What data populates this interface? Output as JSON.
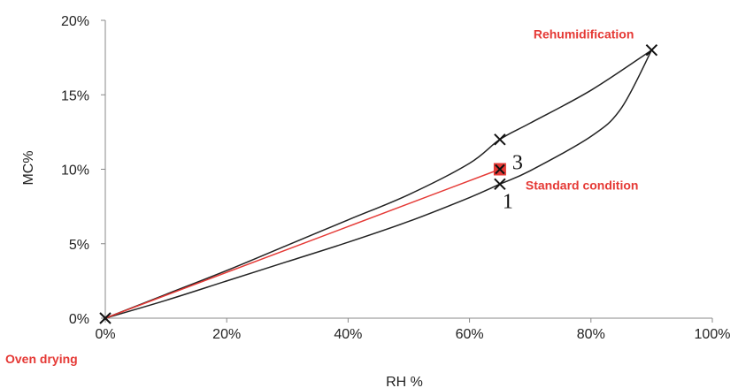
{
  "chart_data": {
    "type": "line",
    "title": "",
    "xlabel": "RH %",
    "ylabel": "MC%",
    "xlim": [
      0,
      100
    ],
    "ylim": [
      0,
      20
    ],
    "x_ticks": [
      "0%",
      "20%",
      "40%",
      "60%",
      "80%",
      "100%"
    ],
    "y_ticks": [
      "0%",
      "5%",
      "10%",
      "15%",
      "20%"
    ],
    "grid": false,
    "legend": "none",
    "series": [
      {
        "points": [
          [
            0,
            0
          ],
          [
            10,
            1.6
          ],
          [
            20,
            3.2
          ],
          [
            30,
            4.9
          ],
          [
            40,
            6.6
          ],
          [
            50,
            8.3
          ],
          [
            60,
            10.4
          ],
          [
            65,
            12
          ],
          [
            70,
            13.1
          ],
          [
            80,
            15.3
          ],
          [
            90,
            18
          ]
        ]
      },
      {
        "points": [
          [
            0,
            0
          ],
          [
            10,
            1.2
          ],
          [
            20,
            2.5
          ],
          [
            30,
            3.8
          ],
          [
            40,
            5.1
          ],
          [
            50,
            6.5
          ],
          [
            60,
            8.1
          ],
          [
            65,
            9
          ],
          [
            70,
            9.9
          ],
          [
            80,
            12.2
          ],
          [
            85,
            14.1
          ],
          [
            90,
            18
          ]
        ]
      },
      {
        "points": [
          [
            0,
            0
          ],
          [
            65,
            10
          ]
        ]
      }
    ],
    "markers": [
      {
        "x": 0,
        "y": 0,
        "shape": "x"
      },
      {
        "x": 65,
        "y": 12,
        "shape": "x"
      },
      {
        "x": 65,
        "y": 9,
        "shape": "x"
      },
      {
        "x": 90,
        "y": 18,
        "shape": "x"
      },
      {
        "x": 65,
        "y": 10,
        "shape": "square"
      }
    ],
    "annotations": [
      {
        "text": "Rehumidification",
        "x": 90,
        "y": 18
      },
      {
        "text": "Standard condition",
        "x": 65,
        "y": 10
      },
      {
        "text": "Oven drying",
        "x": 0,
        "y": 0
      },
      {
        "text": "3",
        "x": 65,
        "y": 10
      },
      {
        "text": "1",
        "x": 65,
        "y": 9
      }
    ],
    "colors": {
      "black_lines": "#222222",
      "red_line": "#e53935",
      "annotation": "#e53935"
    }
  }
}
